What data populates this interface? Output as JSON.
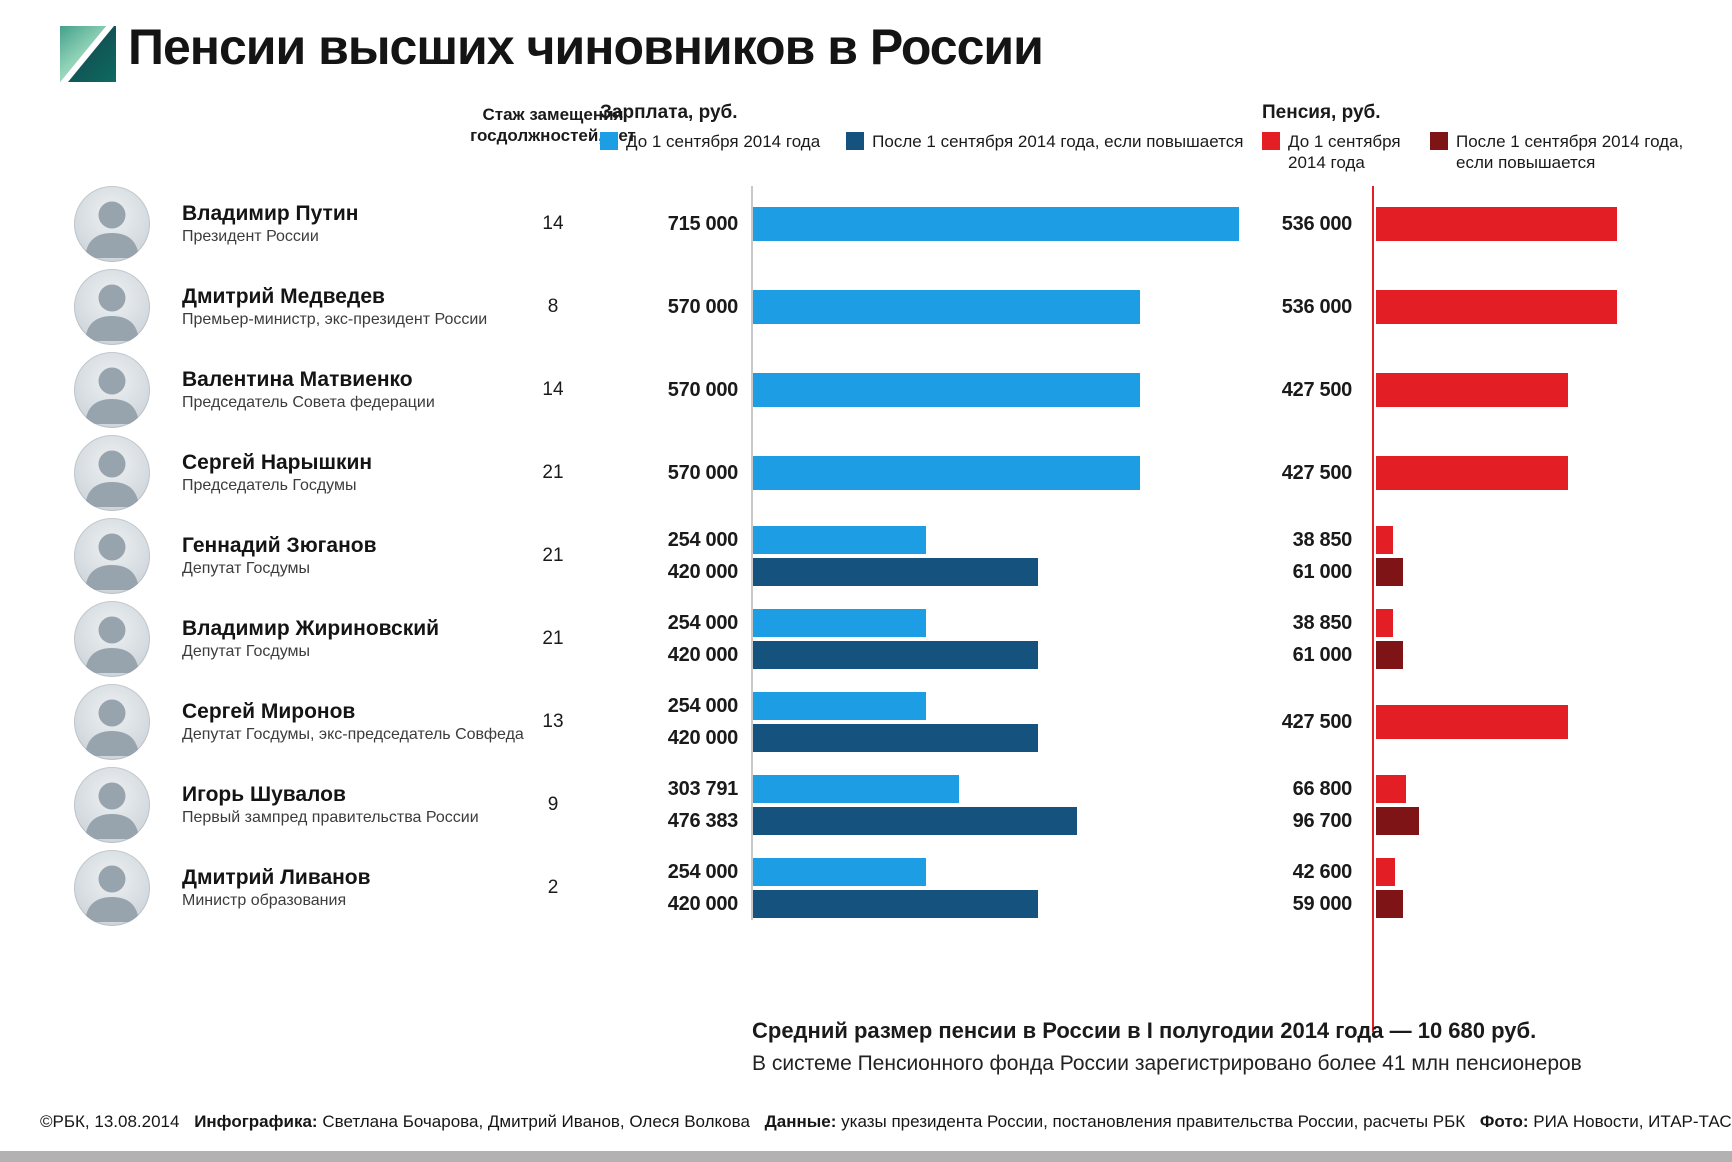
{
  "logo": {
    "brand": "РБК"
  },
  "title": "Пенсии высших чиновников в России",
  "columns": {
    "tenure": {
      "header": "Стаж замещения госдолжностей, лет"
    },
    "salary": {
      "header": "Зарплата, руб.",
      "legend": [
        {
          "label": "До 1 сентября 2014 года",
          "color": "#1d9de4"
        },
        {
          "label": "После 1 сентября 2014 года, если повышается",
          "color": "#15527d"
        }
      ]
    },
    "pension": {
      "header": "Пенсия, руб.",
      "legend": [
        {
          "label": "До 1 сентября 2014 года",
          "color": "#e31e24"
        },
        {
          "label": "После 1 сентября 2014 года, если повышается",
          "color": "#7e1416"
        }
      ]
    }
  },
  "chart_data": {
    "type": "bar",
    "orientation": "horizontal",
    "unit": "руб.",
    "groups": [
      "Зарплата, руб.",
      "Пенсия, руб."
    ],
    "series_labels": {
      "salary_before": "Зарплата до 1 сентября 2014 года",
      "salary_after": "Зарплата после 1 сентября 2014 года, если повышается",
      "pension_before": "Пенсия до 1 сентября 2014 года",
      "pension_after": "Пенсия после 1 сентября 2014 года, если повышается"
    },
    "rows": [
      {
        "name": "Владимир Путин",
        "position": "Президент России",
        "tenure_years": "14",
        "salary_before": 715000,
        "salary_after": null,
        "pension_before": 536000,
        "pension_after": null
      },
      {
        "name": "Дмитрий Медведев",
        "position": "Премьер-министр, экс-президент России",
        "tenure_years": "8",
        "salary_before": 570000,
        "salary_after": null,
        "pension_before": 536000,
        "pension_after": null
      },
      {
        "name": "Валентина Матвиенко",
        "position": "Председатель Совета федерации",
        "tenure_years": "14",
        "salary_before": 570000,
        "salary_after": null,
        "pension_before": 427500,
        "pension_after": null
      },
      {
        "name": "Сергей Нарышкин",
        "position": "Председатель Госдумы",
        "tenure_years": "21",
        "salary_before": 570000,
        "salary_after": null,
        "pension_before": 427500,
        "pension_after": null
      },
      {
        "name": "Геннадий Зюганов",
        "position": "Депутат Госдумы",
        "tenure_years": "21",
        "salary_before": 254000,
        "salary_after": 420000,
        "pension_before": 38850,
        "pension_after": 61000
      },
      {
        "name": "Владимир Жириновский",
        "position": "Депутат Госдумы",
        "tenure_years": "21",
        "salary_before": 254000,
        "salary_after": 420000,
        "pension_before": 38850,
        "pension_after": 61000
      },
      {
        "name": "Сергей Миронов",
        "position": "Депутат Госдумы, экс-председатель Совфеда",
        "tenure_years": "13",
        "salary_before": 254000,
        "salary_after": 420000,
        "pension_before": 427500,
        "pension_after": null
      },
      {
        "name": "Игорь Шувалов",
        "position": "Первый зампред правительства России",
        "tenure_years": "9",
        "salary_before": 303791,
        "salary_after": 476383,
        "pension_before": 66800,
        "pension_after": 96700
      },
      {
        "name": "Дмитрий Ливанов",
        "position": "Министр образования",
        "tenure_years": "2",
        "salary_before": 254000,
        "salary_after": 420000,
        "pension_before": 42600,
        "pension_after": 59000
      }
    ]
  },
  "footnotes": {
    "line1": "Средний размер пенсии в России в I полугодии 2014 года — 10 680 руб.",
    "line2": "В системе Пенсионного фонда России зарегистрировано более 41 млн пенсионеров"
  },
  "credits": {
    "copyright": "©РБК, 13.08.2014",
    "infographics_label": "Инфографика:",
    "infographics_text": "Светлана Бочарова, Дмитрий Иванов, Олеся Волкова",
    "data_label": "Данные:",
    "data_text": "указы президента России, постановления правительства России, расчеты РБК",
    "photo_label": "Фото:",
    "photo_text": "РИА Новости, ИТАР-ТАСС"
  }
}
